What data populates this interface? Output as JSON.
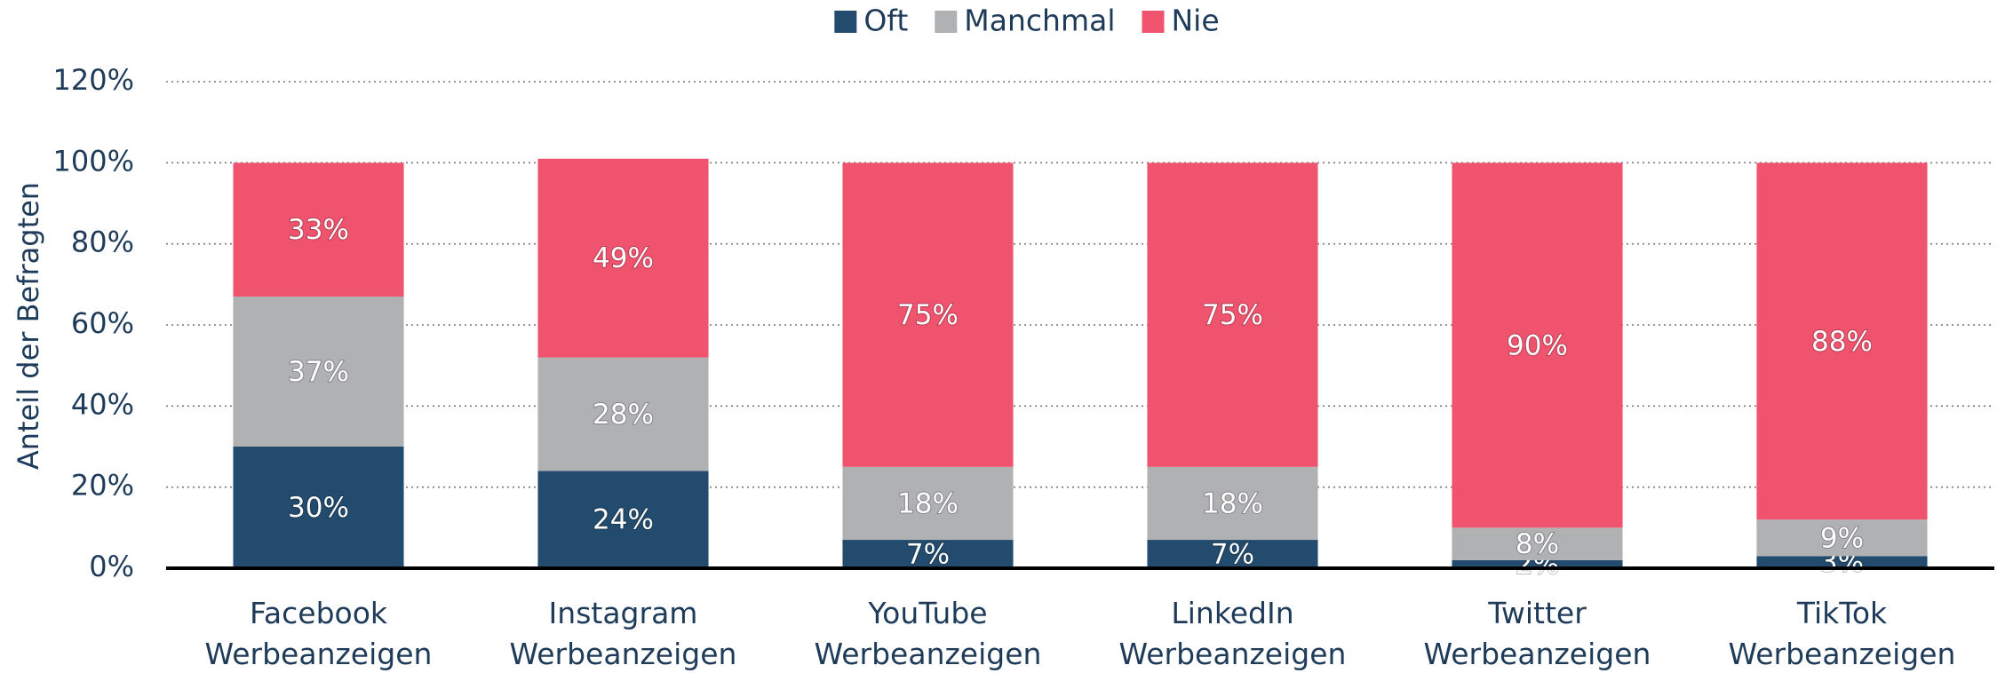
{
  "chart_data": {
    "type": "stacked_bar",
    "y_label": "Anteil der Befragten",
    "categories": [
      "Facebook Werbeanzeigen",
      "Instagram Werbeanzeigen",
      "YouTube Werbeanzeigen",
      "LinkedIn Werbeanzeigen",
      "Twitter Werbeanzeigen",
      "TikTok Werbeanzeigen"
    ],
    "series": [
      {
        "name": "Oft",
        "color": "#234b6e",
        "values": [
          30,
          24,
          7,
          7,
          2,
          3
        ],
        "value_labels": [
          "30%",
          "24%",
          "7%",
          "7%",
          "2%",
          "3%"
        ]
      },
      {
        "name": "Manchmal",
        "color": "#b0b1b3",
        "values": [
          37,
          28,
          18,
          18,
          8,
          9
        ],
        "value_labels": [
          "37%",
          "28%",
          "18%",
          "18%",
          "8%",
          "9%"
        ]
      },
      {
        "name": "Nie",
        "color": "#f0536e",
        "values": [
          33,
          49,
          75,
          75,
          90,
          88
        ],
        "value_labels": [
          "33%",
          "49%",
          "75%",
          "75%",
          "90%",
          "88%"
        ]
      }
    ],
    "ylim": [
      0,
      120
    ],
    "yticks": [
      {
        "value": 0,
        "label": "0%"
      },
      {
        "value": 20,
        "label": "20%"
      },
      {
        "value": 40,
        "label": "40%"
      },
      {
        "value": 60,
        "label": "60%"
      },
      {
        "value": 80,
        "label": "80%"
      },
      {
        "value": 100,
        "label": "100%"
      },
      {
        "value": 120,
        "label": "120%"
      }
    ],
    "grid": true,
    "legend": "top"
  }
}
